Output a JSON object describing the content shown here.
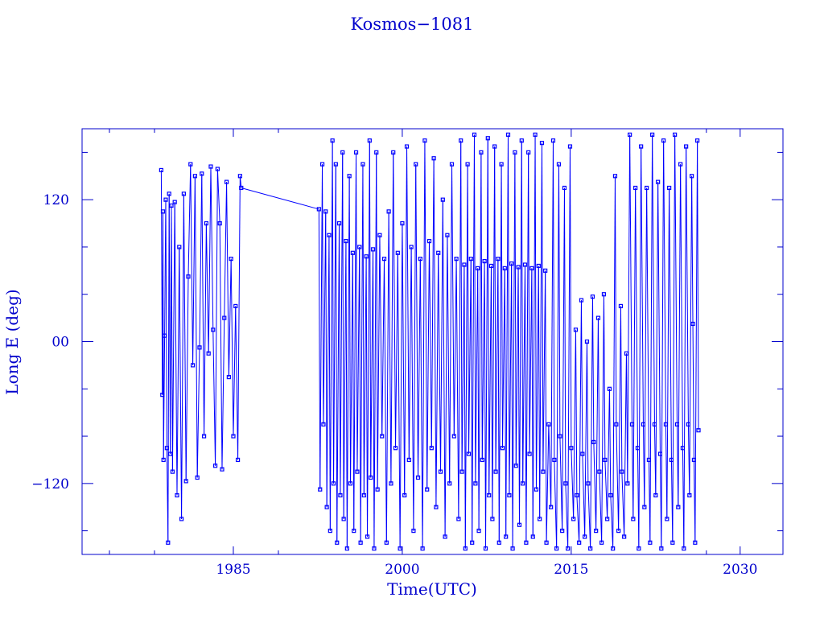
{
  "chart_data": {
    "type": "line",
    "title": "Kosmos−1081",
    "xlabel": "Time(UTC)",
    "ylabel": "Long E (deg)",
    "xlim": [
      1971.57,
      2033.8
    ],
    "ylim": [
      -180,
      180
    ],
    "x_ticks": [
      1985,
      2000,
      2015,
      2030
    ],
    "x_tick_labels": [
      "1985",
      "2000",
      "2015",
      "2030"
    ],
    "x_minor_ticks": [
      1974,
      1978,
      1989,
      2027
    ],
    "y_ticks": [
      -120,
      0,
      120
    ],
    "y_tick_labels": [
      "−120",
      "00",
      "120"
    ],
    "y_minor_ticks": [
      -160,
      -80,
      -40,
      40,
      80,
      160
    ],
    "grid": false,
    "marker": "open-square",
    "color": "#0000ff",
    "axis_color": "#0000cc",
    "points": [
      [
        1978.6,
        145
      ],
      [
        1978.7,
        -45
      ],
      [
        1978.75,
        110
      ],
      [
        1978.8,
        -100
      ],
      [
        1978.9,
        5
      ],
      [
        1979.0,
        120
      ],
      [
        1979.1,
        -90
      ],
      [
        1979.2,
        -170
      ],
      [
        1979.3,
        125
      ],
      [
        1979.4,
        -95
      ],
      [
        1979.5,
        115
      ],
      [
        1979.6,
        -110
      ],
      [
        1979.8,
        118
      ],
      [
        1980.0,
        -130
      ],
      [
        1980.2,
        80
      ],
      [
        1980.4,
        -150
      ],
      [
        1980.6,
        125
      ],
      [
        1980.8,
        -118
      ],
      [
        1981.0,
        55
      ],
      [
        1981.2,
        150
      ],
      [
        1981.4,
        -20
      ],
      [
        1981.6,
        140
      ],
      [
        1981.8,
        -115
      ],
      [
        1982.0,
        -5
      ],
      [
        1982.2,
        142
      ],
      [
        1982.4,
        -80
      ],
      [
        1982.6,
        100
      ],
      [
        1982.8,
        -10
      ],
      [
        1983.0,
        148
      ],
      [
        1983.2,
        10
      ],
      [
        1983.4,
        -105
      ],
      [
        1983.6,
        146
      ],
      [
        1983.8,
        100
      ],
      [
        1984.0,
        -108
      ],
      [
        1984.2,
        20
      ],
      [
        1984.4,
        135
      ],
      [
        1984.6,
        -30
      ],
      [
        1984.8,
        70
      ],
      [
        1985.0,
        -80
      ],
      [
        1985.2,
        30
      ],
      [
        1985.4,
        -100
      ],
      [
        1985.6,
        140
      ],
      [
        1985.7,
        130
      ],
      [
        1992.6,
        112
      ],
      [
        1992.7,
        -125
      ],
      [
        1992.9,
        150
      ],
      [
        1993.0,
        -70
      ],
      [
        1993.2,
        110
      ],
      [
        1993.3,
        -140
      ],
      [
        1993.5,
        90
      ],
      [
        1993.6,
        -160
      ],
      [
        1993.8,
        170
      ],
      [
        1993.9,
        -120
      ],
      [
        1994.1,
        150
      ],
      [
        1994.2,
        -170
      ],
      [
        1994.4,
        100
      ],
      [
        1994.5,
        -130
      ],
      [
        1994.7,
        160
      ],
      [
        1994.8,
        -150
      ],
      [
        1995.0,
        85
      ],
      [
        1995.1,
        -175
      ],
      [
        1995.3,
        140
      ],
      [
        1995.4,
        -120
      ],
      [
        1995.6,
        75
      ],
      [
        1995.7,
        -160
      ],
      [
        1995.9,
        160
      ],
      [
        1996.0,
        -110
      ],
      [
        1996.2,
        80
      ],
      [
        1996.3,
        -170
      ],
      [
        1996.5,
        150
      ],
      [
        1996.6,
        -130
      ],
      [
        1996.8,
        72
      ],
      [
        1996.9,
        -165
      ],
      [
        1997.1,
        170
      ],
      [
        1997.2,
        -115
      ],
      [
        1997.4,
        78
      ],
      [
        1997.5,
        -175
      ],
      [
        1997.7,
        160
      ],
      [
        1997.8,
        -125
      ],
      [
        1998.0,
        90
      ],
      [
        1998.2,
        -80
      ],
      [
        1998.4,
        70
      ],
      [
        1998.6,
        -170
      ],
      [
        1998.8,
        110
      ],
      [
        1999.0,
        -120
      ],
      [
        1999.2,
        160
      ],
      [
        1999.4,
        -90
      ],
      [
        1999.6,
        75
      ],
      [
        1999.8,
        -175
      ],
      [
        2000.0,
        100
      ],
      [
        2000.2,
        -130
      ],
      [
        2000.4,
        165
      ],
      [
        2000.6,
        -100
      ],
      [
        2000.8,
        80
      ],
      [
        2001.0,
        -160
      ],
      [
        2001.2,
        150
      ],
      [
        2001.4,
        -115
      ],
      [
        2001.6,
        70
      ],
      [
        2001.8,
        -175
      ],
      [
        2002.0,
        170
      ],
      [
        2002.2,
        -125
      ],
      [
        2002.4,
        85
      ],
      [
        2002.6,
        -90
      ],
      [
        2002.8,
        155
      ],
      [
        2003.0,
        -140
      ],
      [
        2003.2,
        75
      ],
      [
        2003.4,
        -110
      ],
      [
        2003.6,
        120
      ],
      [
        2003.8,
        -165
      ],
      [
        2004.0,
        90
      ],
      [
        2004.2,
        -120
      ],
      [
        2004.4,
        150
      ],
      [
        2004.6,
        -80
      ],
      [
        2004.8,
        70
      ],
      [
        2005.0,
        -150
      ],
      [
        2005.2,
        170
      ],
      [
        2005.3,
        -110
      ],
      [
        2005.5,
        65
      ],
      [
        2005.6,
        -175
      ],
      [
        2005.8,
        150
      ],
      [
        2005.9,
        -95
      ],
      [
        2006.1,
        70
      ],
      [
        2006.2,
        -170
      ],
      [
        2006.4,
        175
      ],
      [
        2006.5,
        -120
      ],
      [
        2006.7,
        62
      ],
      [
        2006.8,
        -160
      ],
      [
        2007.0,
        160
      ],
      [
        2007.1,
        -100
      ],
      [
        2007.3,
        68
      ],
      [
        2007.4,
        -175
      ],
      [
        2007.6,
        172
      ],
      [
        2007.7,
        -130
      ],
      [
        2007.9,
        64
      ],
      [
        2008.0,
        -150
      ],
      [
        2008.2,
        165
      ],
      [
        2008.3,
        -110
      ],
      [
        2008.5,
        70
      ],
      [
        2008.6,
        -170
      ],
      [
        2008.8,
        150
      ],
      [
        2008.9,
        -90
      ],
      [
        2009.1,
        62
      ],
      [
        2009.2,
        -165
      ],
      [
        2009.4,
        175
      ],
      [
        2009.5,
        -130
      ],
      [
        2009.7,
        66
      ],
      [
        2009.8,
        -175
      ],
      [
        2010.0,
        160
      ],
      [
        2010.1,
        -105
      ],
      [
        2010.3,
        63
      ],
      [
        2010.4,
        -155
      ],
      [
        2010.6,
        170
      ],
      [
        2010.7,
        -120
      ],
      [
        2010.9,
        65
      ],
      [
        2011.0,
        -170
      ],
      [
        2011.2,
        160
      ],
      [
        2011.3,
        -95
      ],
      [
        2011.5,
        62
      ],
      [
        2011.6,
        -165
      ],
      [
        2011.8,
        175
      ],
      [
        2011.9,
        -125
      ],
      [
        2012.1,
        64
      ],
      [
        2012.2,
        -150
      ],
      [
        2012.4,
        168
      ],
      [
        2012.5,
        -110
      ],
      [
        2012.7,
        60
      ],
      [
        2012.8,
        -170
      ],
      [
        2013.0,
        -70
      ],
      [
        2013.2,
        -140
      ],
      [
        2013.4,
        170
      ],
      [
        2013.5,
        -100
      ],
      [
        2013.7,
        -175
      ],
      [
        2013.9,
        150
      ],
      [
        2014.0,
        -80
      ],
      [
        2014.2,
        -160
      ],
      [
        2014.4,
        130
      ],
      [
        2014.5,
        -120
      ],
      [
        2014.7,
        -175
      ],
      [
        2014.9,
        165
      ],
      [
        2015.0,
        -90
      ],
      [
        2015.2,
        -150
      ],
      [
        2015.4,
        10
      ],
      [
        2015.5,
        -130
      ],
      [
        2015.7,
        -170
      ],
      [
        2015.9,
        35
      ],
      [
        2016.0,
        -95
      ],
      [
        2016.2,
        -165
      ],
      [
        2016.4,
        0
      ],
      [
        2016.5,
        -120
      ],
      [
        2016.7,
        -175
      ],
      [
        2016.9,
        38
      ],
      [
        2017.0,
        -85
      ],
      [
        2017.2,
        -160
      ],
      [
        2017.4,
        20
      ],
      [
        2017.5,
        -110
      ],
      [
        2017.7,
        -170
      ],
      [
        2017.9,
        40
      ],
      [
        2018.0,
        -100
      ],
      [
        2018.2,
        -150
      ],
      [
        2018.4,
        -40
      ],
      [
        2018.5,
        -130
      ],
      [
        2018.7,
        -175
      ],
      [
        2018.9,
        140
      ],
      [
        2019.0,
        -70
      ],
      [
        2019.2,
        -160
      ],
      [
        2019.4,
        30
      ],
      [
        2019.5,
        -110
      ],
      [
        2019.7,
        -165
      ],
      [
        2019.9,
        -10
      ],
      [
        2020.0,
        -120
      ],
      [
        2020.2,
        175
      ],
      [
        2020.4,
        -70
      ],
      [
        2020.5,
        -150
      ],
      [
        2020.7,
        130
      ],
      [
        2020.9,
        -90
      ],
      [
        2021.0,
        -175
      ],
      [
        2021.2,
        165
      ],
      [
        2021.4,
        -70
      ],
      [
        2021.5,
        -140
      ],
      [
        2021.7,
        130
      ],
      [
        2021.9,
        -100
      ],
      [
        2022.0,
        -170
      ],
      [
        2022.2,
        175
      ],
      [
        2022.4,
        -70
      ],
      [
        2022.5,
        -130
      ],
      [
        2022.7,
        135
      ],
      [
        2022.9,
        -95
      ],
      [
        2023.0,
        -175
      ],
      [
        2023.2,
        170
      ],
      [
        2023.4,
        -70
      ],
      [
        2023.5,
        -150
      ],
      [
        2023.7,
        130
      ],
      [
        2023.9,
        -100
      ],
      [
        2024.0,
        -170
      ],
      [
        2024.2,
        175
      ],
      [
        2024.4,
        -70
      ],
      [
        2024.5,
        -140
      ],
      [
        2024.7,
        150
      ],
      [
        2024.9,
        -90
      ],
      [
        2025.0,
        -175
      ],
      [
        2025.2,
        165
      ],
      [
        2025.4,
        -70
      ],
      [
        2025.5,
        -130
      ],
      [
        2025.7,
        140
      ],
      [
        2025.8,
        15
      ],
      [
        2025.9,
        -100
      ],
      [
        2026.0,
        -170
      ],
      [
        2026.2,
        170
      ],
      [
        2026.3,
        -75
      ]
    ]
  }
}
